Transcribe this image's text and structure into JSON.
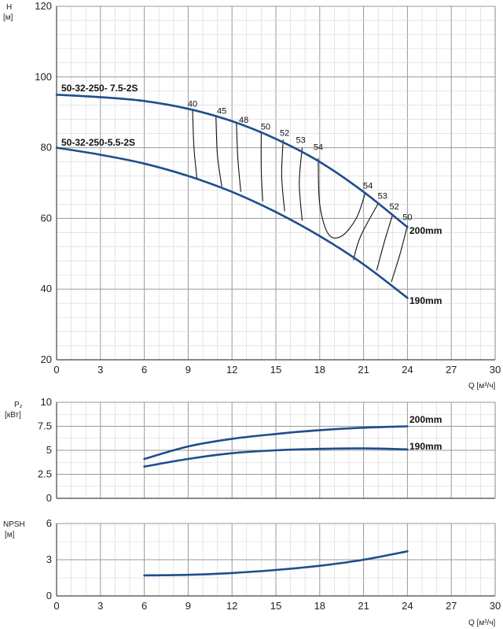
{
  "colors": {
    "curve": "#1f4e8c",
    "grid_major": "#9a9a9a",
    "grid_minor": "#d4d4d4",
    "iso": "#111111"
  },
  "chart_data": [
    {
      "id": "head",
      "type": "line",
      "ylabel": "H",
      "yunit": "[м]",
      "xlabel": "Q [м³/ч]",
      "xlim": [
        0,
        30
      ],
      "ylim": [
        20,
        120
      ],
      "xticks": [
        0,
        3,
        6,
        9,
        12,
        15,
        18,
        21,
        24,
        27,
        30
      ],
      "yticks": [
        20,
        40,
        60,
        80,
        100,
        120
      ],
      "grid": true,
      "series": [
        {
          "name": "200mm",
          "x": [
            0,
            3,
            6,
            9,
            12,
            15,
            18,
            21,
            24
          ],
          "y": [
            95,
            94.3,
            93.2,
            91,
            87.5,
            82.5,
            76,
            67.5,
            57.5
          ]
        },
        {
          "name": "190mm",
          "x": [
            0,
            3,
            6,
            9,
            12,
            15,
            18,
            21,
            24
          ],
          "y": [
            80,
            78,
            75.5,
            72,
            67.5,
            61.8,
            55,
            47,
            37.5
          ]
        }
      ],
      "model_labels": [
        "50-32-250- 7.5-2S",
        "50-32-250-5.5-2S"
      ],
      "efficiency_labels": [
        {
          "text": "40",
          "x": 9.3,
          "y": 90.7
        },
        {
          "text": "45",
          "x": 11.3,
          "y": 88.7
        },
        {
          "text": "48",
          "x": 12.8,
          "y": 86.2
        },
        {
          "text": "50",
          "x": 14.3,
          "y": 84.3
        },
        {
          "text": "52",
          "x": 15.6,
          "y": 82.5
        },
        {
          "text": "53",
          "x": 16.7,
          "y": 80.5
        },
        {
          "text": "54",
          "x": 17.9,
          "y": 78.5
        },
        {
          "text": "54",
          "x": 21.3,
          "y": 67.6
        },
        {
          "text": "53",
          "x": 22.3,
          "y": 64.7
        },
        {
          "text": "52",
          "x": 23.1,
          "y": 61.6
        },
        {
          "text": "50",
          "x": 24.0,
          "y": 58.6
        }
      ],
      "iso_efficiency_lines": [
        {
          "x": [
            9.3,
            9.4,
            9.6
          ],
          "y": [
            90.7,
            80,
            71.3
          ]
        },
        {
          "x": [
            10.9,
            11.0,
            11.3
          ],
          "y": [
            89.0,
            78,
            69.0
          ]
        },
        {
          "x": [
            12.3,
            12.4,
            12.6
          ],
          "y": [
            87.2,
            77,
            67.5
          ]
        },
        {
          "x": [
            14.0,
            14.0,
            14.1
          ],
          "y": [
            84.7,
            74,
            64.8
          ]
        },
        {
          "x": [
            15.5,
            15.4,
            15.6
          ],
          "y": [
            82.3,
            72,
            62.0
          ]
        },
        {
          "x": [
            16.8,
            16.6,
            16.8
          ],
          "y": [
            80.0,
            70,
            59.3
          ]
        },
        {
          "x": [
            17.9,
            18.0,
            18.6,
            19.5,
            20.5,
            21.1
          ],
          "y": [
            77.0,
            64.0,
            55.5,
            55.0,
            60.0,
            67.0
          ]
        },
        {
          "x": [
            22.0,
            20.8,
            20.3
          ],
          "y": [
            64.2,
            55,
            48.2
          ]
        },
        {
          "x": [
            23.0,
            22.4,
            21.9
          ],
          "y": [
            61.2,
            53,
            45.3
          ]
        },
        {
          "x": [
            24.0,
            23.5,
            22.9
          ],
          "y": [
            58.0,
            50,
            42.0
          ]
        }
      ]
    },
    {
      "id": "power",
      "type": "line",
      "ylabel": "P₂",
      "yunit": "[кВт]",
      "xlim": [
        0,
        30
      ],
      "ylim": [
        0,
        10
      ],
      "yticks": [
        0,
        2.5,
        5,
        7.5,
        10
      ],
      "ytick_labels": [
        "0",
        "2.5",
        "5",
        "7.5",
        "10"
      ],
      "grid": true,
      "series": [
        {
          "name": "200mm",
          "x": [
            6,
            9,
            12,
            15,
            18,
            21,
            24
          ],
          "y": [
            4.1,
            5.4,
            6.2,
            6.7,
            7.1,
            7.35,
            7.5
          ]
        },
        {
          "name": "190mm",
          "x": [
            6,
            9,
            12,
            15,
            18,
            21,
            24
          ],
          "y": [
            3.3,
            4.1,
            4.7,
            5.0,
            5.15,
            5.2,
            5.1
          ]
        }
      ]
    },
    {
      "id": "npsh",
      "type": "line",
      "ylabel": "NPSH",
      "yunit": "[м]",
      "xlabel": "Q [м³/ч]",
      "xlim": [
        0,
        30
      ],
      "ylim": [
        0,
        6
      ],
      "xticks": [
        0,
        3,
        6,
        9,
        12,
        15,
        18,
        21,
        24,
        27,
        30
      ],
      "yticks": [
        0,
        3,
        6
      ],
      "grid": true,
      "series": [
        {
          "x": [
            6,
            9,
            12,
            15,
            18,
            21,
            24
          ],
          "y": [
            1.7,
            1.75,
            1.9,
            2.15,
            2.5,
            3.0,
            3.7
          ]
        }
      ]
    }
  ]
}
